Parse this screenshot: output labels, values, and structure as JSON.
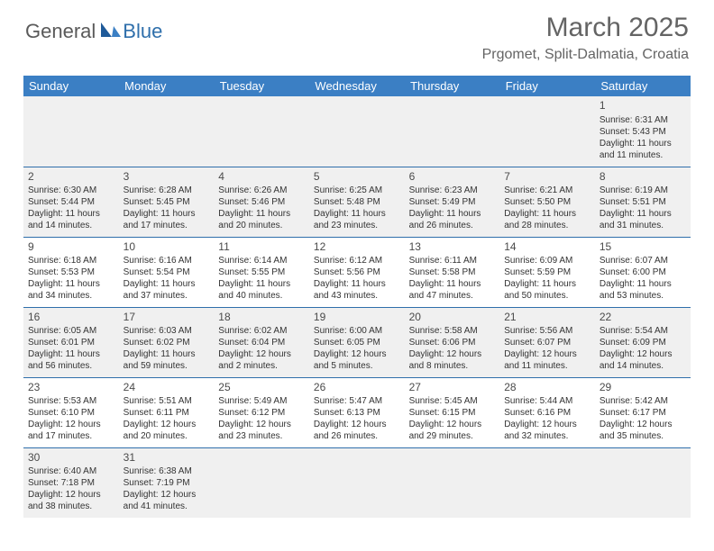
{
  "logo": {
    "part1": "General",
    "part2": "Blue"
  },
  "title": "March 2025",
  "location": "Prgomet, Split-Dalmatia, Croatia",
  "colors": {
    "header_bg": "#3b7fc4",
    "header_text": "#ffffff",
    "row_divider": "#2f6fab",
    "shade_bg": "#f0f0f0",
    "title_color": "#646464"
  },
  "day_headers": [
    "Sunday",
    "Monday",
    "Tuesday",
    "Wednesday",
    "Thursday",
    "Friday",
    "Saturday"
  ],
  "weeks": [
    [
      {
        "n": "",
        "lines": []
      },
      {
        "n": "",
        "lines": []
      },
      {
        "n": "",
        "lines": []
      },
      {
        "n": "",
        "lines": []
      },
      {
        "n": "",
        "lines": []
      },
      {
        "n": "",
        "lines": []
      },
      {
        "n": "1",
        "lines": [
          "Sunrise: 6:31 AM",
          "Sunset: 5:43 PM",
          "Daylight: 11 hours",
          "and 11 minutes."
        ]
      }
    ],
    [
      {
        "n": "2",
        "lines": [
          "Sunrise: 6:30 AM",
          "Sunset: 5:44 PM",
          "Daylight: 11 hours",
          "and 14 minutes."
        ]
      },
      {
        "n": "3",
        "lines": [
          "Sunrise: 6:28 AM",
          "Sunset: 5:45 PM",
          "Daylight: 11 hours",
          "and 17 minutes."
        ]
      },
      {
        "n": "4",
        "lines": [
          "Sunrise: 6:26 AM",
          "Sunset: 5:46 PM",
          "Daylight: 11 hours",
          "and 20 minutes."
        ]
      },
      {
        "n": "5",
        "lines": [
          "Sunrise: 6:25 AM",
          "Sunset: 5:48 PM",
          "Daylight: 11 hours",
          "and 23 minutes."
        ]
      },
      {
        "n": "6",
        "lines": [
          "Sunrise: 6:23 AM",
          "Sunset: 5:49 PM",
          "Daylight: 11 hours",
          "and 26 minutes."
        ]
      },
      {
        "n": "7",
        "lines": [
          "Sunrise: 6:21 AM",
          "Sunset: 5:50 PM",
          "Daylight: 11 hours",
          "and 28 minutes."
        ]
      },
      {
        "n": "8",
        "lines": [
          "Sunrise: 6:19 AM",
          "Sunset: 5:51 PM",
          "Daylight: 11 hours",
          "and 31 minutes."
        ]
      }
    ],
    [
      {
        "n": "9",
        "lines": [
          "Sunrise: 6:18 AM",
          "Sunset: 5:53 PM",
          "Daylight: 11 hours",
          "and 34 minutes."
        ]
      },
      {
        "n": "10",
        "lines": [
          "Sunrise: 6:16 AM",
          "Sunset: 5:54 PM",
          "Daylight: 11 hours",
          "and 37 minutes."
        ]
      },
      {
        "n": "11",
        "lines": [
          "Sunrise: 6:14 AM",
          "Sunset: 5:55 PM",
          "Daylight: 11 hours",
          "and 40 minutes."
        ]
      },
      {
        "n": "12",
        "lines": [
          "Sunrise: 6:12 AM",
          "Sunset: 5:56 PM",
          "Daylight: 11 hours",
          "and 43 minutes."
        ]
      },
      {
        "n": "13",
        "lines": [
          "Sunrise: 6:11 AM",
          "Sunset: 5:58 PM",
          "Daylight: 11 hours",
          "and 47 minutes."
        ]
      },
      {
        "n": "14",
        "lines": [
          "Sunrise: 6:09 AM",
          "Sunset: 5:59 PM",
          "Daylight: 11 hours",
          "and 50 minutes."
        ]
      },
      {
        "n": "15",
        "lines": [
          "Sunrise: 6:07 AM",
          "Sunset: 6:00 PM",
          "Daylight: 11 hours",
          "and 53 minutes."
        ]
      }
    ],
    [
      {
        "n": "16",
        "lines": [
          "Sunrise: 6:05 AM",
          "Sunset: 6:01 PM",
          "Daylight: 11 hours",
          "and 56 minutes."
        ]
      },
      {
        "n": "17",
        "lines": [
          "Sunrise: 6:03 AM",
          "Sunset: 6:02 PM",
          "Daylight: 11 hours",
          "and 59 minutes."
        ]
      },
      {
        "n": "18",
        "lines": [
          "Sunrise: 6:02 AM",
          "Sunset: 6:04 PM",
          "Daylight: 12 hours",
          "and 2 minutes."
        ]
      },
      {
        "n": "19",
        "lines": [
          "Sunrise: 6:00 AM",
          "Sunset: 6:05 PM",
          "Daylight: 12 hours",
          "and 5 minutes."
        ]
      },
      {
        "n": "20",
        "lines": [
          "Sunrise: 5:58 AM",
          "Sunset: 6:06 PM",
          "Daylight: 12 hours",
          "and 8 minutes."
        ]
      },
      {
        "n": "21",
        "lines": [
          "Sunrise: 5:56 AM",
          "Sunset: 6:07 PM",
          "Daylight: 12 hours",
          "and 11 minutes."
        ]
      },
      {
        "n": "22",
        "lines": [
          "Sunrise: 5:54 AM",
          "Sunset: 6:09 PM",
          "Daylight: 12 hours",
          "and 14 minutes."
        ]
      }
    ],
    [
      {
        "n": "23",
        "lines": [
          "Sunrise: 5:53 AM",
          "Sunset: 6:10 PM",
          "Daylight: 12 hours",
          "and 17 minutes."
        ]
      },
      {
        "n": "24",
        "lines": [
          "Sunrise: 5:51 AM",
          "Sunset: 6:11 PM",
          "Daylight: 12 hours",
          "and 20 minutes."
        ]
      },
      {
        "n": "25",
        "lines": [
          "Sunrise: 5:49 AM",
          "Sunset: 6:12 PM",
          "Daylight: 12 hours",
          "and 23 minutes."
        ]
      },
      {
        "n": "26",
        "lines": [
          "Sunrise: 5:47 AM",
          "Sunset: 6:13 PM",
          "Daylight: 12 hours",
          "and 26 minutes."
        ]
      },
      {
        "n": "27",
        "lines": [
          "Sunrise: 5:45 AM",
          "Sunset: 6:15 PM",
          "Daylight: 12 hours",
          "and 29 minutes."
        ]
      },
      {
        "n": "28",
        "lines": [
          "Sunrise: 5:44 AM",
          "Sunset: 6:16 PM",
          "Daylight: 12 hours",
          "and 32 minutes."
        ]
      },
      {
        "n": "29",
        "lines": [
          "Sunrise: 5:42 AM",
          "Sunset: 6:17 PM",
          "Daylight: 12 hours",
          "and 35 minutes."
        ]
      }
    ],
    [
      {
        "n": "30",
        "lines": [
          "Sunrise: 6:40 AM",
          "Sunset: 7:18 PM",
          "Daylight: 12 hours",
          "and 38 minutes."
        ]
      },
      {
        "n": "31",
        "lines": [
          "Sunrise: 6:38 AM",
          "Sunset: 7:19 PM",
          "Daylight: 12 hours",
          "and 41 minutes."
        ]
      },
      {
        "n": "",
        "lines": []
      },
      {
        "n": "",
        "lines": []
      },
      {
        "n": "",
        "lines": []
      },
      {
        "n": "",
        "lines": []
      },
      {
        "n": "",
        "lines": []
      }
    ]
  ]
}
